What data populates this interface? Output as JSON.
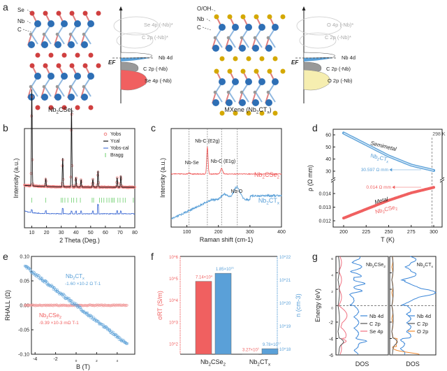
{
  "colors": {
    "red": "#f06060",
    "blue": "#5aa0d8",
    "black": "#222222",
    "gray": "#666666",
    "yellow": "#f0e6a0",
    "gold": "#d4a800",
    "magenta": "#d040d0",
    "green": "#6ccf6c",
    "orange": "#f08a30",
    "dark_blue": "#2f6fd0"
  },
  "panel_a": {
    "label": "a",
    "left": {
      "atom_labels": [
        "Se",
        "Nb",
        "C"
      ],
      "caption": "Nb2CSe2",
      "levels": [
        "Se 4p (-Nb)*",
        "C 2p (-Nb)*",
        "Nb 4d",
        "C 2p (-Nb)",
        "Se 4p (-Nb)"
      ],
      "ef": "EF"
    },
    "right": {
      "atom_labels": [
        "O/OH",
        "Nb",
        "C"
      ],
      "caption": "MXene (Nb2CTx)",
      "levels": [
        "O 4p (-Nb)*",
        "C 2p (-Nb)*",
        "Nb 4d",
        "C 2p (-Nb)",
        "O 2p (-Nb)"
      ],
      "ef": "EF"
    }
  },
  "chart_data": [
    {
      "panel": "b",
      "type": "line",
      "xlabel": "2 Theta (Deg.)",
      "ylabel": "Intensity (a.u.)",
      "xlim": [
        5,
        80
      ],
      "xticks": [
        10,
        20,
        30,
        40,
        50,
        60,
        70,
        80
      ],
      "legend": [
        "Yobs",
        "Ycal",
        "Yobs-cal",
        "Bragg"
      ],
      "legend_position": "top-right",
      "peaks": [
        {
          "x": 10,
          "h": 1.0
        },
        {
          "x": 19.5,
          "h": 0.08
        },
        {
          "x": 31,
          "h": 0.3
        },
        {
          "x": 37,
          "h": 0.82
        },
        {
          "x": 40,
          "h": 0.1
        },
        {
          "x": 43.5,
          "h": 0.08
        },
        {
          "x": 51.5,
          "h": 0.08
        },
        {
          "x": 55,
          "h": 0.17
        },
        {
          "x": 68,
          "h": 0.1
        },
        {
          "x": 70.5,
          "h": 0.12
        }
      ],
      "bragg": [
        10,
        19.5,
        30,
        31,
        32.5,
        34.5,
        37,
        38.5,
        40.5,
        43,
        51,
        52,
        56,
        57.5,
        59,
        61,
        62.5,
        64,
        65,
        66,
        68.5,
        70,
        72,
        73.5,
        79
      ]
    },
    {
      "panel": "c",
      "type": "line",
      "xlabel": "Raman shift (cm-1)",
      "ylabel": "Intensity (a.u.)",
      "xlim": [
        50,
        400
      ],
      "xticks": [
        100,
        200,
        300,
        400
      ],
      "vlines": [
        107,
        165,
        210,
        260
      ],
      "annotations": [
        "Nb-Se",
        "Nb-C (E2g)",
        "Nb-C (E1g)",
        "Nb-O"
      ],
      "series": [
        {
          "name": "Nb2CSe2"
        },
        {
          "name": "Nb2CTx"
        }
      ]
    },
    {
      "panel": "d",
      "type": "line",
      "xlabel": "T (K)",
      "ylabel": "ρ (Ω mm)",
      "xlim": [
        190,
        305
      ],
      "xticks": [
        200,
        225,
        250,
        275,
        300
      ],
      "yticks_upper": [
        30,
        40,
        50,
        60
      ],
      "yticks_lower": [
        0.012,
        0.013,
        0.014
      ],
      "marker_label": "298 K",
      "series": [
        {
          "name": "Nb2CTx",
          "tag": "Semimetal",
          "x": [
            200,
            225,
            250,
            275,
            300
          ],
          "y": [
            61.5,
            52,
            42.5,
            35,
            30.6
          ],
          "value_label": "30.597 Ω mm"
        },
        {
          "name": "Nb2CSe2",
          "tag": "Metal",
          "x": [
            200,
            225,
            250,
            275,
            300
          ],
          "y": [
            0.0122,
            0.01285,
            0.0135,
            0.01405,
            0.01445
          ],
          "value_label": "0.014 Ω mm"
        }
      ]
    },
    {
      "panel": "e",
      "type": "scatter",
      "xlabel": "B (T)",
      "ylabel": "RHALL (Ω)",
      "xlim": [
        -6.5,
        6.5
      ],
      "ylim": [
        -0.1,
        0.1
      ],
      "xticks": [
        -4,
        -2,
        0,
        2,
        4
      ],
      "yticks": [
        "0.10",
        "0.05",
        "0.00",
        "-0.05",
        "-0.10"
      ],
      "series": [
        {
          "name": "Nb2CTx",
          "slope_label": "-1.60 ×10-2 Ω T-1",
          "slope": -0.016
        },
        {
          "name": "Nb2CSe2",
          "slope_label": "-9.39 ×10-3 mΩ T-1",
          "slope": 0
        }
      ]
    },
    {
      "panel": "f",
      "type": "bar",
      "categories": [
        "Nb2CSe2",
        "Nb2CTx"
      ],
      "left_ylabel": "σRT (S/m)",
      "right_ylabel": "n (cm-3)",
      "left_yticks": [
        "10^2",
        "10^3",
        "10^4",
        "10^5",
        "10^6"
      ],
      "right_yticks": [
        "10^18",
        "10^19",
        "10^20",
        "10^21",
        "10^22"
      ],
      "series": [
        {
          "name": "σRT",
          "values": [
            71400,
            32.7
          ],
          "labels": [
            "7.14×10^4",
            "3.27×10^1"
          ],
          "log_range": [
            1.5,
            6
          ]
        },
        {
          "name": "n",
          "values": [
            1.85e+21,
            9.78e+17
          ],
          "labels": [
            "1.85×10^21",
            "9.78×10^17"
          ],
          "log_range": [
            17.75,
            22
          ]
        }
      ]
    },
    {
      "panel": "g",
      "type": "line",
      "ylabel": "Energy (eV)",
      "ylim": [
        -6,
        6
      ],
      "yticks": [
        6,
        4,
        2,
        0,
        -2,
        -4,
        -6
      ],
      "subplots": [
        {
          "title": "Nb2CSe2",
          "xlabel": "DOS",
          "legend": [
            "Nb 4d",
            "C 2p",
            "Se 4p"
          ]
        },
        {
          "title": "Nb2CTx",
          "xlabel": "DOS",
          "legend": [
            "Nb 4d",
            "C 2p",
            "O 2p"
          ]
        }
      ]
    }
  ],
  "panel_labels": [
    "b",
    "c",
    "d",
    "e",
    "f",
    "g"
  ]
}
